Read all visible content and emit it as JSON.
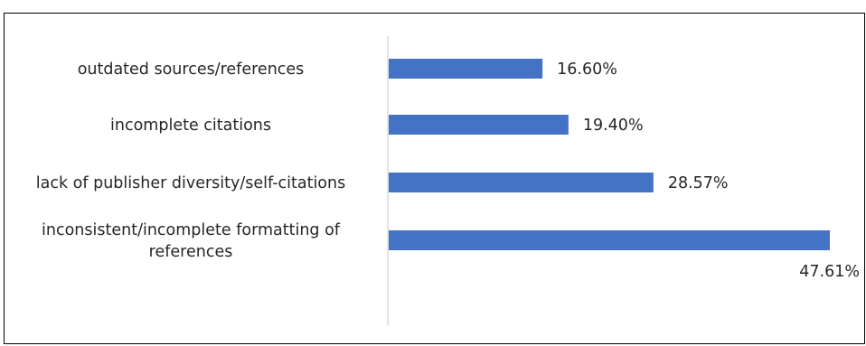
{
  "chart_data": {
    "type": "bar",
    "orientation": "horizontal",
    "title": "",
    "xlabel": "",
    "ylabel": "",
    "categories": [
      "outdated sources/references",
      "incomplete citations",
      "lack of publisher diversity/self-citations",
      "inconsistent/incomplete formatting of references"
    ],
    "category_lines": [
      [
        "outdated sources/references"
      ],
      [
        "incomplete citations"
      ],
      [
        "lack of publisher diversity/self-citations"
      ],
      [
        "inconsistent/incomplete formatting of",
        "references"
      ]
    ],
    "values": [
      16.6,
      19.4,
      28.57,
      47.61
    ],
    "value_labels": [
      "16.60%",
      "19.40%",
      "28.57%",
      "47.61%"
    ],
    "xlim": [
      0,
      47.61
    ],
    "grid": false,
    "legend": "none",
    "bar_color": "#4472C4",
    "axis_color": "#D9D9D9",
    "text_color": "#262626"
  }
}
